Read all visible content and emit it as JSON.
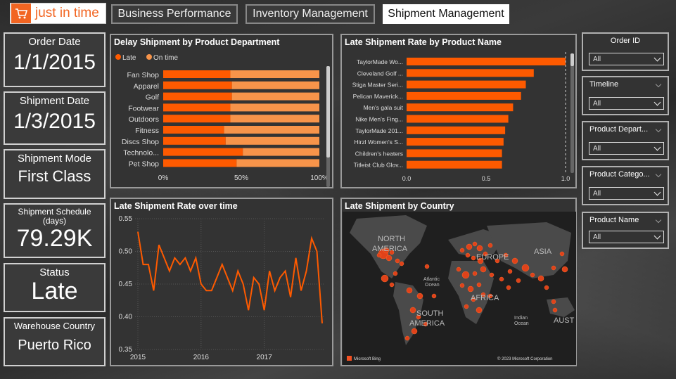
{
  "brand": {
    "name": "just in time"
  },
  "nav": {
    "tabs": [
      {
        "label": "Business Performance",
        "active": false
      },
      {
        "label": "Inventory Management",
        "active": false
      },
      {
        "label": "Shipment Management",
        "active": true
      }
    ]
  },
  "kpis": {
    "order_date": {
      "label": "Order Date",
      "value": "1/1/2015"
    },
    "shipment_date": {
      "label": "Shipment Date",
      "value": "1/3/2015"
    },
    "shipment_mode": {
      "label": "Shipment Mode",
      "value": "First Class"
    },
    "shipment_schedule": {
      "label": "Shipment Schedule\n(days)",
      "value": "79.29K"
    },
    "status": {
      "label": "Status",
      "value": "Late"
    },
    "warehouse_country": {
      "label": "Warehouse Country",
      "value": "Puerto Rico"
    }
  },
  "colors": {
    "accent": "#fe5a00",
    "accent_light": "#f7944a",
    "panel": "#333333",
    "border": "#9a9a9a"
  },
  "slicers": [
    {
      "title": "Order ID",
      "value": "All",
      "centered": true
    },
    {
      "title": "Timeline",
      "value": "All"
    },
    {
      "title": "Product Depart...",
      "value": "All"
    },
    {
      "title": "Product Catego...",
      "value": "All"
    },
    {
      "title": "Product Name",
      "value": "All"
    }
  ],
  "chart_data": [
    {
      "id": "delay_by_department",
      "type": "bar",
      "orientation": "horizontal",
      "stacked": "percent",
      "title": "Delay Shipment by Product Department",
      "legend": [
        "Late",
        "On time"
      ],
      "legend_position": "top-left",
      "categories": [
        "Fan Shop",
        "Apparel",
        "Golf",
        "Footwear",
        "Outdoors",
        "Fitness",
        "Discs Shop",
        "Technolo...",
        "Pet Shop"
      ],
      "series": [
        {
          "name": "Late",
          "color": "#fe5a00",
          "values": [
            0.43,
            0.44,
            0.44,
            0.43,
            0.43,
            0.39,
            0.4,
            0.51,
            0.47
          ]
        },
        {
          "name": "On time",
          "color": "#f7944a",
          "values": [
            0.57,
            0.56,
            0.56,
            0.57,
            0.57,
            0.61,
            0.6,
            0.49,
            0.53
          ]
        }
      ],
      "x_ticks": [
        "0%",
        "50%",
        "100%"
      ]
    },
    {
      "id": "late_rate_by_product",
      "type": "bar",
      "orientation": "horizontal",
      "title": "Late Shipment Rate by Product Name",
      "categories": [
        "TaylorMade Wo...",
        "Cleveland Golf ...",
        "Stiga Master Seri...",
        "Pelican Maverick...",
        "Men's gala suit",
        "Nike Men's Fing...",
        "TaylorMade 201...",
        "Hirzl Women's S...",
        "Children's heaters",
        "Titleist Club Glov..."
      ],
      "values": [
        1.0,
        0.8,
        0.75,
        0.72,
        0.67,
        0.64,
        0.62,
        0.61,
        0.6,
        0.6
      ],
      "x_ticks": [
        "0.0",
        "0.5",
        "1.0"
      ],
      "xlim": [
        0,
        1.0
      ],
      "reference_line": 1.0
    },
    {
      "id": "late_rate_over_time",
      "type": "line",
      "title": "Late Shipment Rate over time",
      "x_ticks": [
        "2015",
        "2016",
        "2017"
      ],
      "y_ticks": [
        "0.55",
        "0.50",
        "0.45",
        "0.40",
        "0.35"
      ],
      "ylim": [
        0.35,
        0.55
      ],
      "x": [
        "2015-01",
        "2015-02",
        "2015-03",
        "2015-04",
        "2015-05",
        "2015-06",
        "2015-07",
        "2015-08",
        "2015-09",
        "2015-10",
        "2015-11",
        "2015-12",
        "2016-01",
        "2016-02",
        "2016-03",
        "2016-04",
        "2016-05",
        "2016-06",
        "2016-07",
        "2016-08",
        "2016-09",
        "2016-10",
        "2016-11",
        "2016-12",
        "2017-01",
        "2017-02",
        "2017-03",
        "2017-04",
        "2017-05",
        "2017-06",
        "2017-07",
        "2017-08",
        "2017-09",
        "2017-10",
        "2017-11",
        "2017-12"
      ],
      "values": [
        0.53,
        0.48,
        0.48,
        0.44,
        0.51,
        0.49,
        0.47,
        0.49,
        0.48,
        0.49,
        0.47,
        0.49,
        0.45,
        0.44,
        0.44,
        0.46,
        0.48,
        0.46,
        0.44,
        0.47,
        0.45,
        0.41,
        0.46,
        0.45,
        0.41,
        0.47,
        0.44,
        0.46,
        0.47,
        0.43,
        0.49,
        0.44,
        0.47,
        0.52,
        0.5,
        0.39
      ],
      "grid": true
    }
  ],
  "map": {
    "title": "Late Shipment by Country",
    "labels": [
      "NORTH\nAMERICA",
      "EUROPE",
      "ASIA",
      "AFRICA",
      "SOUTH\nAMERICA",
      "AUST",
      "Atlantic\nOcean",
      "Indian\nOcean"
    ],
    "attribution_logo": "Microsoft Bing",
    "copyright": "© 2023 Microsoft Corporation"
  }
}
